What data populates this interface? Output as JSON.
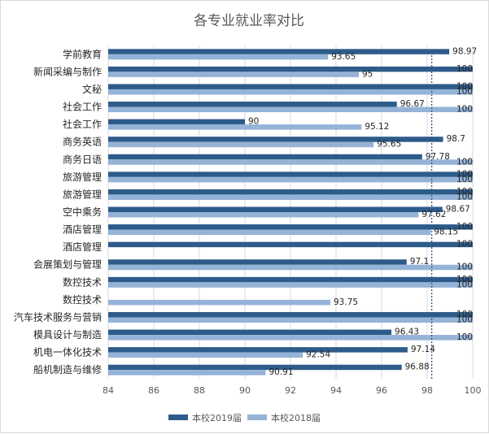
{
  "chart_data": {
    "type": "bar",
    "orientation": "horizontal",
    "title": "各专业就业率对比",
    "categories": [
      "学前教育",
      "新闻采编与制作",
      "文秘",
      "社会工作",
      "社会工作",
      "商务英语",
      "商务日语",
      "旅游管理",
      "旅游管理",
      "空中乘务",
      "酒店管理",
      "酒店管理",
      "会展策划与管理",
      "数控技术",
      "数控技术",
      "汽车技术服务与营销",
      "模具设计与制造",
      "机电一体化技术",
      "船机制造与维修"
    ],
    "series": [
      {
        "name": "本校2019届",
        "color": "#2e5c8a",
        "values": [
          98.97,
          100,
          100,
          96.67,
          90,
          98.7,
          97.78,
          100,
          100,
          98.67,
          100,
          100,
          97.1,
          100,
          null,
          100,
          96.43,
          97.14,
          96.88
        ],
        "labels": [
          "98.97",
          "100",
          "100",
          "96.67",
          "90",
          "98.7",
          "97.78",
          "100",
          "100",
          "98.67",
          "100",
          "100",
          "97.1",
          "100",
          "",
          "100",
          "96.43",
          "97.14",
          "96.88"
        ]
      },
      {
        "name": "本校2018届",
        "color": "#95b3d7",
        "values": [
          93.65,
          95,
          100,
          100,
          95.12,
          95.65,
          100,
          100,
          100,
          97.62,
          98.15,
          null,
          100,
          100,
          93.75,
          100,
          100,
          92.54,
          90.91
        ],
        "labels": [
          "93.65",
          "95",
          "100",
          "100",
          "95.12",
          "95.65",
          "100",
          "100",
          "100",
          "97.62",
          "98.15",
          "",
          "100",
          "100",
          "93.75",
          "100",
          "100",
          "92.54",
          "90.91"
        ]
      }
    ],
    "xlim": [
      84,
      100
    ],
    "xticks": [
      "84",
      "86",
      "88",
      "90",
      "92",
      "94",
      "96",
      "98",
      "100"
    ],
    "reference_line": 98.2,
    "grid": true,
    "legend": "bottom"
  }
}
